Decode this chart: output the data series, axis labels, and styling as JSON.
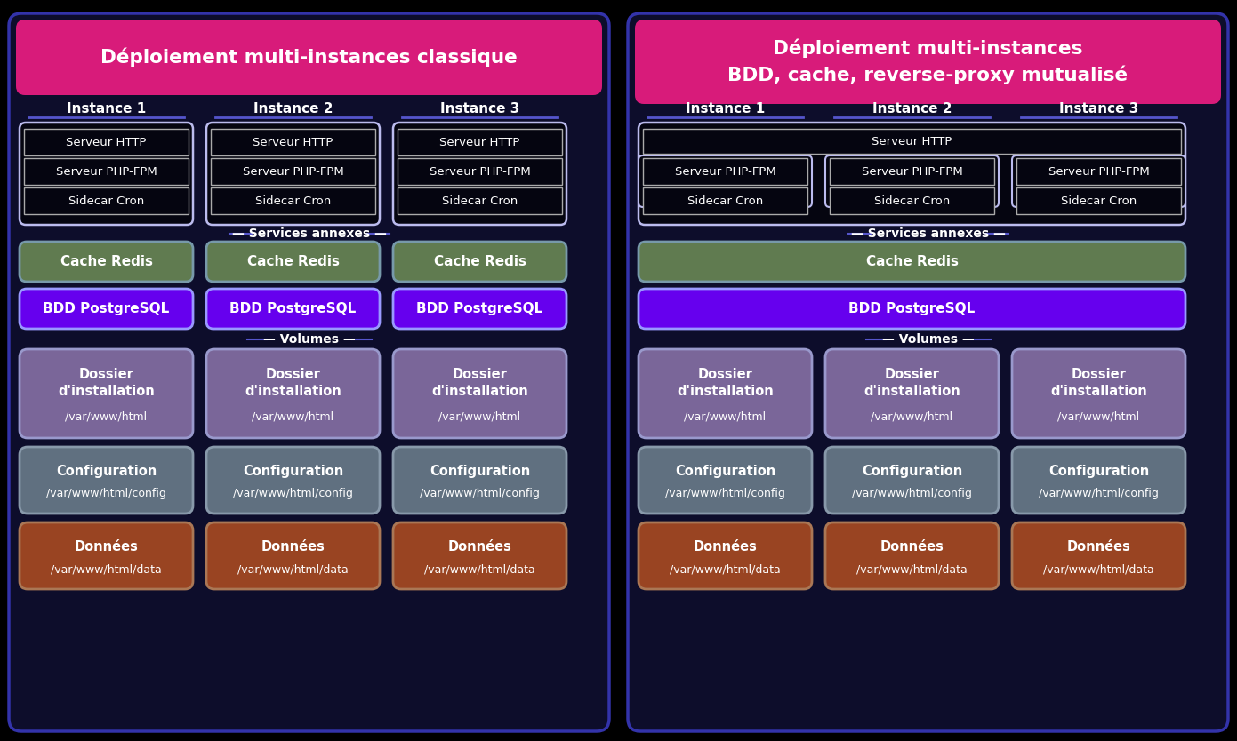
{
  "bg_color": "#000000",
  "title_bg_color": "#D81B7A",
  "title_text_color": "#FFFFFF",
  "left_title": "Déploiement multi-instances classique",
  "right_title": "Déploiement multi-instances\nBDD, cache, reverse-proxy mutualisé",
  "instance_label_color": "#FFFFFF",
  "instance_underline_color": "#5555CC",
  "panel_bg": "#0D0D2B",
  "panel_border": "#3333AA",
  "container_bg": "#050510",
  "container_border": "#BBBBEE",
  "container_text_color": "#FFFFFF",
  "inner_border": "#AAAAAA",
  "redis_bg": "#607B50",
  "redis_border": "#7799AA",
  "redis_text_color": "#FFFFFF",
  "postgres_bg": "#6600EE",
  "postgres_border": "#9999FF",
  "postgres_text_color": "#FFFFFF",
  "dossier_bg": "#7A6699",
  "dossier_border": "#9999CC",
  "dossier_text_color": "#FFFFFF",
  "config_bg": "#607080",
  "config_border": "#8899AA",
  "config_text_color": "#FFFFFF",
  "donnees_bg": "#994422",
  "donnees_border": "#AA7755",
  "donnees_text_color": "#FFFFFF",
  "section_label_color": "#FFFFFF",
  "services_label": "— Services annexes —",
  "volumes_label": "— Volumes —"
}
